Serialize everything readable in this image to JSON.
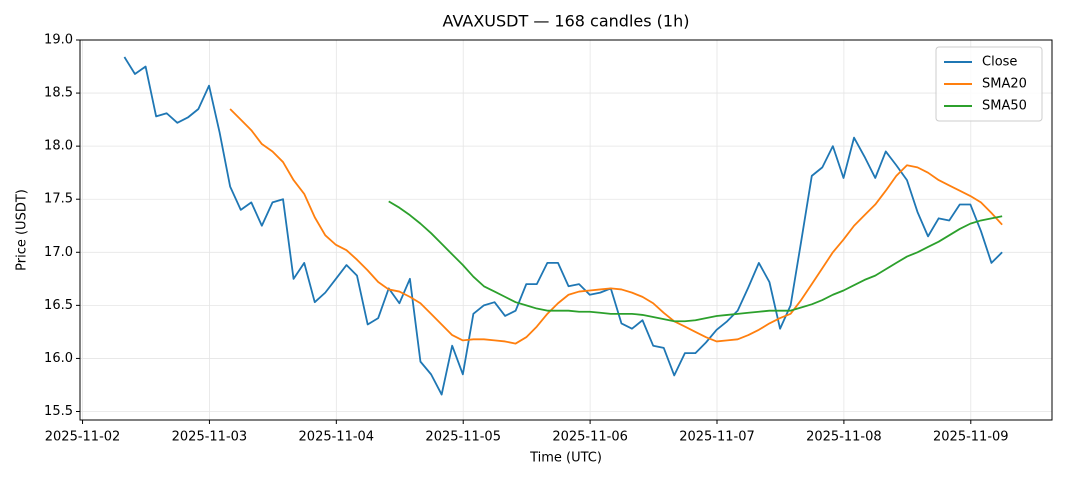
{
  "chart_data": {
    "type": "line",
    "title": "AVAXUSDT — 168 candles (1h)",
    "xlabel": "Time (UTC)",
    "ylabel": "Price (USDT)",
    "x": [
      2.33,
      2.413,
      2.497,
      2.58,
      2.663,
      2.747,
      2.83,
      2.913,
      2.997,
      3.08,
      3.163,
      3.247,
      3.33,
      3.413,
      3.497,
      3.58,
      3.663,
      3.747,
      3.83,
      3.913,
      3.997,
      4.08,
      4.163,
      4.247,
      4.33,
      4.413,
      4.497,
      4.58,
      4.663,
      4.747,
      4.83,
      4.913,
      4.997,
      5.08,
      5.163,
      5.247,
      5.33,
      5.413,
      5.497,
      5.58,
      5.663,
      5.747,
      5.83,
      5.913,
      5.997,
      6.08,
      6.163,
      6.247,
      6.33,
      6.413,
      6.497,
      6.58,
      6.663,
      6.747,
      6.83,
      6.913,
      6.997,
      7.08,
      7.163,
      7.247,
      7.33,
      7.413,
      7.497,
      7.58,
      7.663,
      7.747,
      7.83,
      7.913,
      7.997,
      8.08,
      8.163,
      8.247,
      8.33,
      8.413,
      8.497,
      8.58,
      8.663,
      8.747,
      8.83,
      8.913,
      8.997,
      9.08,
      9.163,
      9.247
    ],
    "series": [
      {
        "name": "Close",
        "color": "#1f77b4",
        "values": [
          18.84,
          18.68,
          18.75,
          18.28,
          18.31,
          18.22,
          18.27,
          18.35,
          18.57,
          18.13,
          17.62,
          17.4,
          17.47,
          17.25,
          17.47,
          17.5,
          16.75,
          16.9,
          16.53,
          16.62,
          16.75,
          16.88,
          16.78,
          16.32,
          16.38,
          16.66,
          16.52,
          16.75,
          15.97,
          15.85,
          15.66,
          16.12,
          15.85,
          16.42,
          16.5,
          16.53,
          16.4,
          16.45,
          16.7,
          16.7,
          16.9,
          16.9,
          16.68,
          16.7,
          16.6,
          16.62,
          16.66,
          16.33,
          16.28,
          16.36,
          16.12,
          16.1,
          15.84,
          16.05,
          16.05,
          16.15,
          16.27,
          16.35,
          16.45,
          16.67,
          16.9,
          16.72,
          16.28,
          16.5,
          17.1,
          17.72,
          17.8,
          18.0,
          17.7,
          18.08,
          17.9,
          17.7,
          17.95,
          17.82,
          17.68,
          17.38,
          17.15,
          17.32,
          17.3,
          17.45,
          17.45,
          17.2,
          16.9,
          17.0
        ]
      },
      {
        "name": "SMA20",
        "color": "#ff7f0e",
        "values": [
          null,
          null,
          null,
          null,
          null,
          null,
          null,
          null,
          null,
          null,
          18.35,
          18.25,
          18.15,
          18.02,
          17.95,
          17.85,
          17.68,
          17.55,
          17.33,
          17.16,
          17.07,
          17.02,
          16.93,
          16.83,
          16.72,
          16.65,
          16.63,
          16.58,
          16.52,
          16.42,
          16.32,
          16.22,
          16.17,
          16.18,
          16.18,
          16.17,
          16.16,
          16.14,
          16.2,
          16.3,
          16.42,
          16.52,
          16.6,
          16.63,
          16.64,
          16.65,
          16.66,
          16.65,
          16.62,
          16.58,
          16.52,
          16.43,
          16.35,
          16.3,
          16.25,
          16.2,
          16.16,
          16.17,
          16.18,
          16.22,
          16.27,
          16.33,
          16.38,
          16.42,
          16.55,
          16.7,
          16.85,
          17.0,
          17.12,
          17.25,
          17.35,
          17.45,
          17.58,
          17.72,
          17.82,
          17.8,
          17.75,
          17.68,
          17.63,
          17.58,
          17.53,
          17.47,
          17.37,
          17.26
        ]
      },
      {
        "name": "SMA50",
        "color": "#2ca02c",
        "values": [
          null,
          null,
          null,
          null,
          null,
          null,
          null,
          null,
          null,
          null,
          null,
          null,
          null,
          null,
          null,
          null,
          null,
          null,
          null,
          null,
          null,
          null,
          null,
          null,
          null,
          17.48,
          17.42,
          17.35,
          17.27,
          17.18,
          17.08,
          16.98,
          16.88,
          16.77,
          16.68,
          16.63,
          16.58,
          16.53,
          16.5,
          16.47,
          16.45,
          16.45,
          16.45,
          16.44,
          16.44,
          16.43,
          16.42,
          16.42,
          16.42,
          16.41,
          16.39,
          16.37,
          16.35,
          16.35,
          16.36,
          16.38,
          16.4,
          16.41,
          16.42,
          16.43,
          16.44,
          16.45,
          16.45,
          16.45,
          16.48,
          16.51,
          16.55,
          16.6,
          16.64,
          16.69,
          16.74,
          16.78,
          16.84,
          16.9,
          16.96,
          17.0,
          17.05,
          17.1,
          17.16,
          17.22,
          17.27,
          17.3,
          17.32,
          17.34
        ]
      }
    ],
    "xlim": [
      1.98,
      9.64
    ],
    "xticks": [
      {
        "value": 2,
        "label": "2025-11-02"
      },
      {
        "value": 3,
        "label": "2025-11-03"
      },
      {
        "value": 4,
        "label": "2025-11-04"
      },
      {
        "value": 5,
        "label": "2025-11-05"
      },
      {
        "value": 6,
        "label": "2025-11-06"
      },
      {
        "value": 7,
        "label": "2025-11-07"
      },
      {
        "value": 8,
        "label": "2025-11-08"
      },
      {
        "value": 9,
        "label": "2025-11-09"
      }
    ],
    "ylim": [
      15.42,
      19.0
    ],
    "yticks": [
      15.5,
      {
        "value": 16,
        "label": "16.0"
      },
      16.5,
      {
        "value": 17,
        "label": "17.0"
      },
      17.5,
      {
        "value": 18,
        "label": "18.0"
      },
      18.5,
      {
        "value": 19,
        "label": "19.0"
      }
    ],
    "grid": true,
    "legend": "upper right"
  }
}
